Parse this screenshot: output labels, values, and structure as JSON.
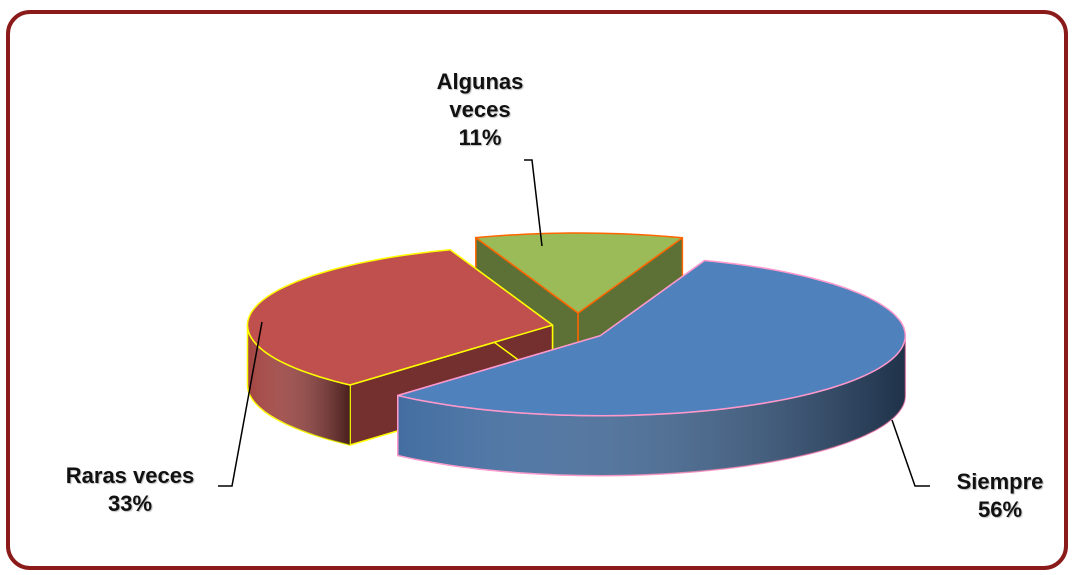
{
  "chart_data": {
    "type": "pie",
    "categories": [
      "Siempre",
      "Raras veces",
      "Algunas veces"
    ],
    "values": [
      56,
      33,
      11
    ],
    "value_labels": [
      "56%",
      "33%",
      "11%"
    ],
    "colors": [
      "#4f81bd",
      "#c0504d",
      "#9bbb59"
    ],
    "edge_colors": [
      "#ff99cc",
      "#ffff00",
      "#ff6600"
    ]
  }
}
